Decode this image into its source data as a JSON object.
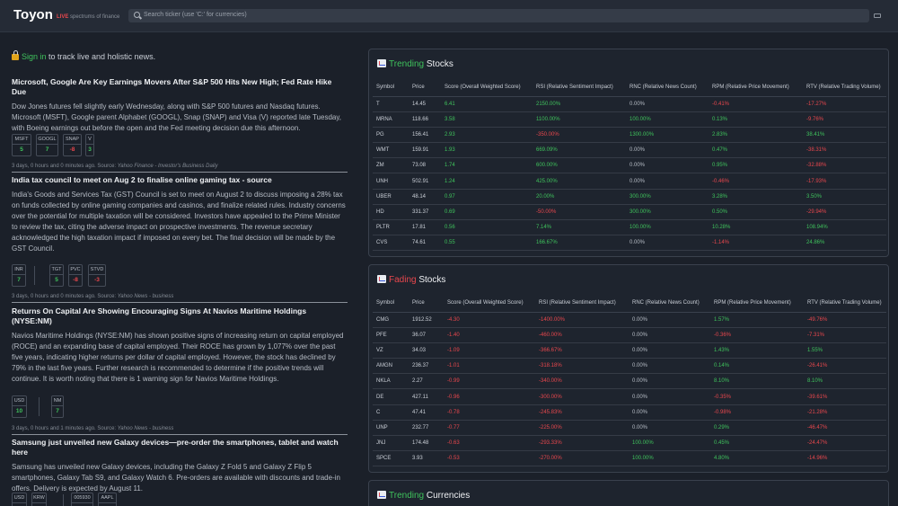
{
  "app": {
    "name": "Toyon",
    "live": "LIVE",
    "tagline": "spectrums of finance"
  },
  "search": {
    "placeholder": "Search ticker (use 'C:' for currencies)"
  },
  "signin": {
    "link": "Sign in",
    "rest": " to track live and holistic news."
  },
  "articles": [
    {
      "title": "Microsoft, Google Are Key Earnings Movers After S&P 500 Hits New High; Fed Rate Hike Due",
      "body": "Dow Jones futures fell slightly early Wednesday, along with S&P 500 futures and Nasdaq futures. Microsoft (MSFT), Google parent Alphabet (GOOGL), Snap (SNAP) and Visa (V) reported late Tuesday, with Boeing earnings out before the open and the Fed meeting decision due this afternoon.",
      "chips": [
        {
          "symbol": "MSFT",
          "value": "5"
        },
        {
          "symbol": "GOOGL",
          "value": "7"
        },
        {
          "symbol": "SNAP",
          "value": "-8"
        },
        {
          "symbol": "V",
          "value": "3"
        }
      ],
      "meta": "3 days, 0 hours and 0 minutes ago. Source: ",
      "source": "Yahoo Finance - Investor's Business Daily"
    },
    {
      "title": "India tax council to meet on Aug 2 to finalise online gaming tax - source",
      "body": "India's Goods and Services Tax (GST) Council is set to meet on August 2 to discuss imposing a 28% tax on funds collected by online gaming companies and casinos, and finalize related rules. Industry concerns over the potential for multiple taxation will be considered. Investors have appealed to the Prime Minister to review the tax, citing the adverse impact on prospective investments. The revenue secretary acknowledged the high taxation impact if imposed on every bet. The final decision will be made by the GST Council.",
      "chips": [
        {
          "symbol": "INR",
          "value": "7"
        },
        {
          "symbol": "TGT",
          "value": "5"
        },
        {
          "symbol": "PVC",
          "value": "-8"
        },
        {
          "symbol": "STVD",
          "value": "-3"
        }
      ],
      "meta": "3 days, 0 hours and 0 minutes ago. Source: ",
      "source": "Yahoo News - business"
    },
    {
      "title": "Returns On Capital Are Showing Encouraging Signs At Navios Maritime Holdings (NYSE:NM)",
      "body": "Navios Maritime Holdings (NYSE:NM) has shown positive signs of increasing return on capital employed (ROCE) and an expanding base of capital employed. Their ROCE has grown by 1,077% over the past five years, indicating higher returns per dollar of capital employed. However, the stock has declined by 79% in the last five years. Further research is recommended to determine if the positive trends will continue. It is worth noting that there is 1 warning sign for Navios Maritime Holdings.",
      "chips": [
        {
          "symbol": "USD",
          "value": "10"
        },
        {
          "symbol": "NM",
          "value": "7"
        }
      ],
      "meta": "3 days, 0 hours and 1 minutes ago. Source: ",
      "source": "Yahoo News - business"
    },
    {
      "title": "Samsung just unveiled new Galaxy devices—pre-order the smartphones, tablet and watch here",
      "body": "Samsung has unveiled new Galaxy devices, including the Galaxy Z Fold 5 and Galaxy Z Flip 5 smartphones, Galaxy Tab S9, and Galaxy Watch 6. Pre-orders are available with discounts and trade-in offers. Delivery is expected by August 11.",
      "chips": [
        {
          "symbol": "USD",
          "value": ""
        },
        {
          "symbol": "KRW",
          "value": ""
        },
        {
          "symbol": "005930",
          "value": ""
        },
        {
          "symbol": "AAPL",
          "value": ""
        }
      ]
    }
  ],
  "columns": [
    "Symbol",
    "Price",
    "Score (Overall Weighted Score)",
    "RSI (Relative Sentiment Impact)",
    "RNC (Relative News Count)",
    "RPM (Relative Price Movement)",
    "RTV (Relative Trading Volume)"
  ],
  "trending": {
    "title_hl": "Trending",
    "title_rest": " Stocks",
    "rows": [
      [
        "T",
        "14.45",
        "6.41",
        "2150.00%",
        "0.00%",
        "-0.41%",
        "-17.27%"
      ],
      [
        "MRNA",
        "118.66",
        "3.58",
        "1100.00%",
        "100.00%",
        "0.13%",
        "-9.76%"
      ],
      [
        "PG",
        "156.41",
        "2.93",
        "-350.00%",
        "1300.00%",
        "2.83%",
        "38.41%"
      ],
      [
        "WMT",
        "159.91",
        "1.93",
        "669.09%",
        "0.00%",
        "0.47%",
        "-38.31%"
      ],
      [
        "ZM",
        "73.08",
        "1.74",
        "600.00%",
        "0.00%",
        "0.95%",
        "-32.88%"
      ],
      [
        "UNH",
        "502.91",
        "1.24",
        "425.00%",
        "0.00%",
        "-0.46%",
        "-17.93%"
      ],
      [
        "UBER",
        "48.14",
        "0.97",
        "20.00%",
        "300.00%",
        "3.28%",
        "3.50%"
      ],
      [
        "HD",
        "331.37",
        "0.69",
        "-50.00%",
        "300.00%",
        "0.50%",
        "-29.94%"
      ],
      [
        "PLTR",
        "17.81",
        "0.56",
        "7.14%",
        "100.00%",
        "10.28%",
        "108.94%"
      ],
      [
        "CVS",
        "74.61",
        "0.55",
        "166.67%",
        "0.00%",
        "-1.14%",
        "24.86%"
      ]
    ]
  },
  "fading": {
    "title_hl": "Fading",
    "title_rest": " Stocks",
    "rows": [
      [
        "CMG",
        "1912.52",
        "-4.30",
        "-1400.00%",
        "0.00%",
        "1.57%",
        "-49.76%"
      ],
      [
        "PFE",
        "36.07",
        "-1.40",
        "-460.00%",
        "0.00%",
        "-0.36%",
        "-7.31%"
      ],
      [
        "VZ",
        "34.03",
        "-1.09",
        "-366.67%",
        "0.00%",
        "1.43%",
        "1.55%"
      ],
      [
        "AMGN",
        "236.37",
        "-1.01",
        "-318.18%",
        "0.00%",
        "0.14%",
        "-26.41%"
      ],
      [
        "NKLA",
        "2.27",
        "-0.99",
        "-340.00%",
        "0.00%",
        "8.10%",
        "8.10%"
      ],
      [
        "DE",
        "427.11",
        "-0.96",
        "-300.00%",
        "0.00%",
        "-0.35%",
        "-39.61%"
      ],
      [
        "C",
        "47.41",
        "-0.78",
        "-245.83%",
        "0.00%",
        "-0.98%",
        "-21.28%"
      ],
      [
        "UNP",
        "232.77",
        "-0.77",
        "-225.00%",
        "0.00%",
        "0.29%",
        "-46.47%"
      ],
      [
        "JNJ",
        "174.48",
        "-0.63",
        "-293.33%",
        "100.00%",
        "0.45%",
        "-24.47%"
      ],
      [
        "SPCE",
        "3.93",
        "-0.53",
        "-270.00%",
        "100.00%",
        "4.80%",
        "-14.96%"
      ]
    ]
  },
  "currencies": {
    "title_hl": "Trending",
    "title_rest": " Currencies"
  }
}
